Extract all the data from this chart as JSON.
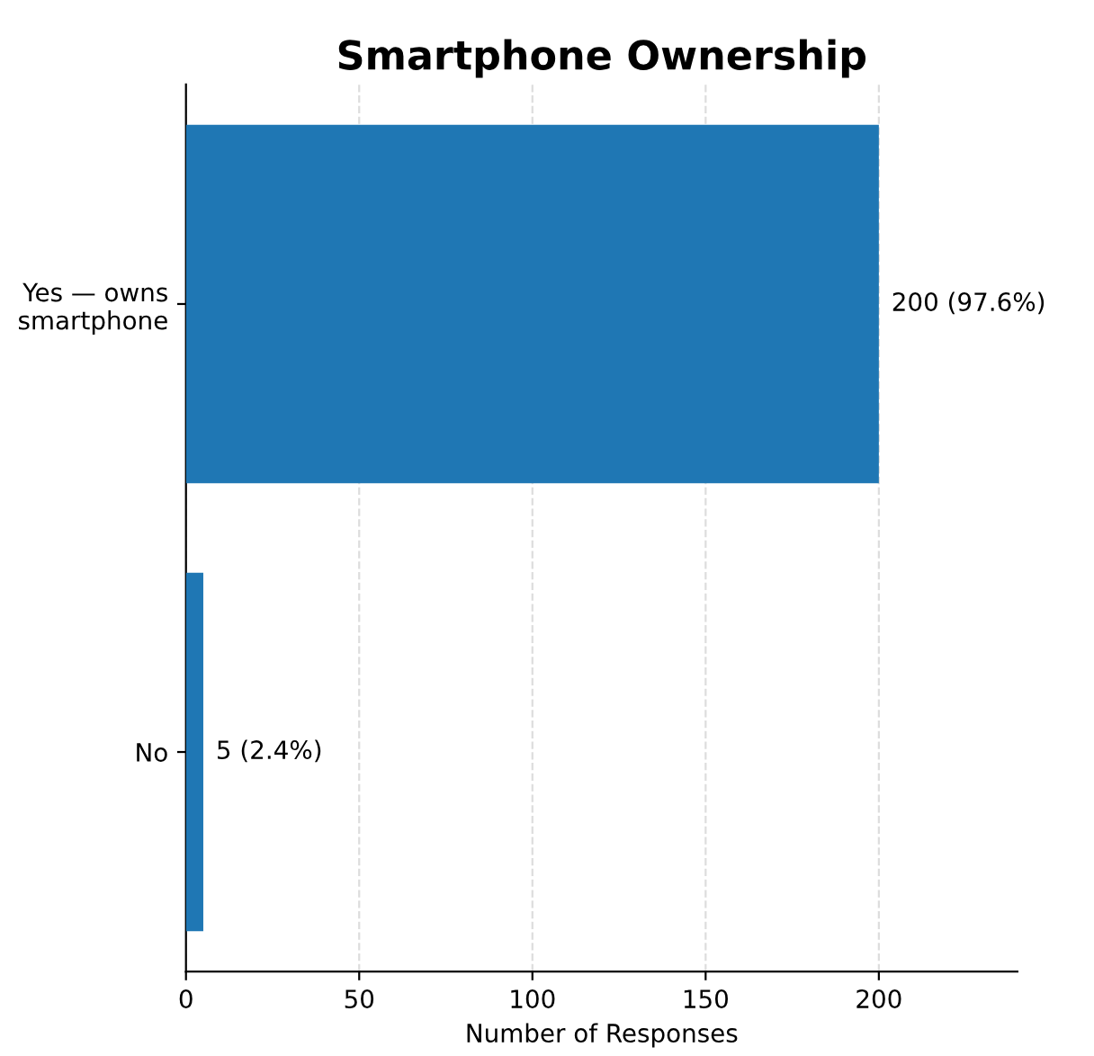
{
  "chart_data": {
    "type": "bar",
    "orientation": "horizontal",
    "title": "Smartphone Ownership",
    "xlabel": "Number of Responses",
    "categories": [
      "Yes — owns\nsmartphone",
      "No"
    ],
    "values": [
      200,
      5
    ],
    "color": "#1f77b4",
    "value_labels": [
      "200 (97.6%)",
      "5 (2.4%)"
    ],
    "xlim": [
      0,
      240
    ],
    "xticks": [
      0,
      50,
      100,
      150,
      200
    ],
    "grid": "x"
  }
}
